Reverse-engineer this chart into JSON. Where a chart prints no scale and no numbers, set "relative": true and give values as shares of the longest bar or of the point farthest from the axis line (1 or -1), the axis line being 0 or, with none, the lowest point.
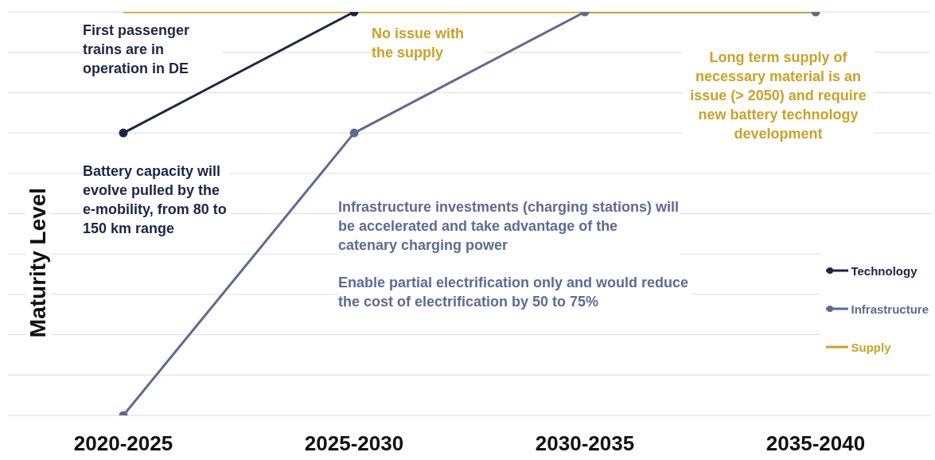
{
  "chart_data": {
    "type": "line",
    "relative": true,
    "ylabel": "Maturity Level",
    "categories": [
      "2020-2025",
      "2025-2030",
      "2030-2035",
      "2035-2040"
    ],
    "series": [
      {
        "name": "Technology",
        "color": "#1b2546",
        "values": [
          0.7,
          1,
          null,
          null
        ],
        "marker": "circle"
      },
      {
        "name": "Infrastructure",
        "color": "#5d6b93",
        "values": [
          0,
          0.7,
          1,
          1
        ],
        "marker": "circle"
      },
      {
        "name": "Supply",
        "color": "#c9a227",
        "values": [
          1,
          1,
          1,
          1
        ],
        "marker": "none"
      }
    ],
    "annotations": [
      "First passenger trains are in operation in DE",
      "Battery capacity will evolve pulled by the e-mobility, from 80 to 150 km range",
      "No issue with the supply",
      "Long term supply of necessary material is an issue (> 2050) and require new battery technology development",
      "Infrastructure investments (charging stations) will be accelerated and take advantage of the catenary charging power",
      "Enable partial electrification only and would reduce the cost of electrification by 50 to 75%"
    ],
    "grid": "y",
    "legend": "right"
  }
}
